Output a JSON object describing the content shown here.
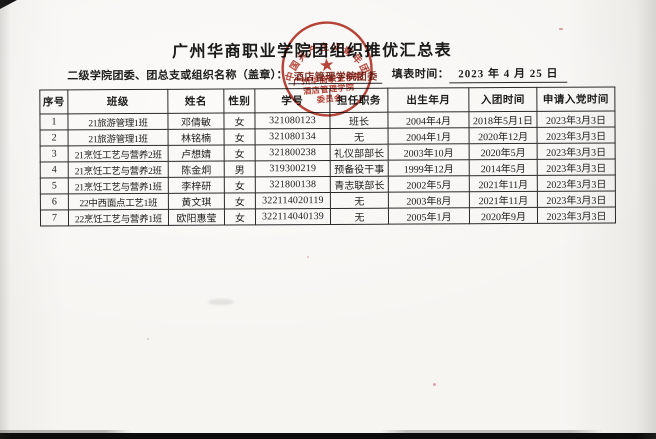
{
  "document": {
    "title": "广州华商职业学院团组织推优汇总表",
    "org_label": "二级学院团委、团总支或组织名称（盖章）：",
    "org_value": "酒店管理学院团委",
    "date_label": "填表时间：",
    "date_value": "2023 年 4 月 25 日"
  },
  "stamp": {
    "arc_text": "中国共产主义青年团",
    "star": "★",
    "line1": "广州华商职业学院",
    "line2": "酒店管理学院",
    "line3": "委员会",
    "color": "#b5372b"
  },
  "table": {
    "headers": [
      "序号",
      "班级",
      "姓名",
      "性别",
      "学号",
      "担任职务",
      "出生年月",
      "入团时间",
      "申请入党时间"
    ],
    "rows": [
      [
        "1",
        "21旅游管理1班",
        "邓倩敏",
        "女",
        "321080123",
        "班长",
        "2004年4月",
        "2018年5月1日",
        "2023年3月3日"
      ],
      [
        "2",
        "21旅游管理1班",
        "林铭楠",
        "女",
        "321080134",
        "无",
        "2004年1月",
        "2020年12月",
        "2023年3月3日"
      ],
      [
        "3",
        "21烹饪工艺与营养2班",
        "卢想婧",
        "女",
        "321800238",
        "礼仪部部长",
        "2003年10月",
        "2020年5月",
        "2023年3月3日"
      ],
      [
        "4",
        "21烹饪工艺与营养2班",
        "陈金炯",
        "男",
        "319300219",
        "预备役干事",
        "1999年12月",
        "2014年5月",
        "2023年3月3日"
      ],
      [
        "5",
        "21烹饪工艺与营养1班",
        "李梓研",
        "女",
        "321800138",
        "青志联部长",
        "2002年5月",
        "2021年11月",
        "2023年3月3日"
      ],
      [
        "6",
        "22中西面点工艺1班",
        "黄文琪",
        "女",
        "322114020119",
        "无",
        "2003年8月",
        "2021年11月",
        "2023年3月3日"
      ],
      [
        "7",
        "22烹饪工艺与营养1班",
        "欧阳惠莹",
        "女",
        "322114040139",
        "无",
        "2005年1月",
        "2020年9月",
        "2023年3月3日"
      ]
    ]
  }
}
